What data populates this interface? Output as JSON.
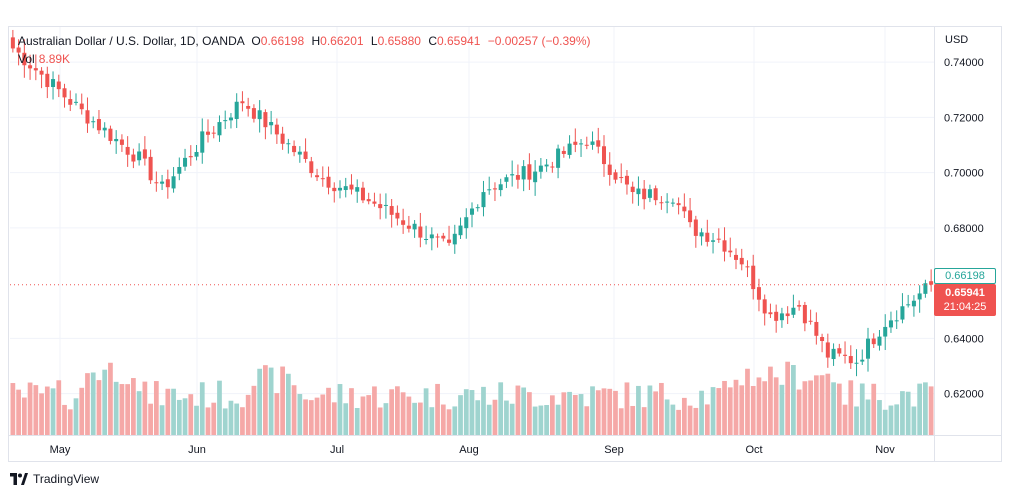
{
  "legend": {
    "title": "Australian Dollar / U.S. Dollar, 1D, OANDA",
    "open_label": "O",
    "open": "0.66198",
    "high_label": "H",
    "high": "0.66201",
    "low_label": "L",
    "low": "0.65880",
    "close_label": "C",
    "close": "0.65941",
    "change": "−0.00257 (−0.39%)",
    "vol_label": "Vol",
    "vol": "8.89K"
  },
  "currency": "USD",
  "price_tags": {
    "open": "0.66198",
    "close": "0.65941",
    "countdown": "21:04:25"
  },
  "brand": {
    "name": "TradingView",
    "logo_icon": "tradingview-logo-icon"
  },
  "colors": {
    "up": "#26a69a",
    "down": "#ef5350",
    "vol_up": "#9fd4cf",
    "vol_down": "#f5a8a7"
  },
  "chart_data": {
    "type": "candlestick",
    "title": "Australian Dollar / U.S. Dollar, 1D, OANDA",
    "ylabel": "USD",
    "ylim": [
      0.605,
      0.7527
    ],
    "y_ticks": [
      "0.74000",
      "0.72000",
      "0.70000",
      "0.68000",
      "0.64000",
      "0.62000"
    ],
    "x_ticks": [
      "May",
      "Jun",
      "Jul",
      "Aug",
      "Sep",
      "Oct",
      "Nov"
    ],
    "grid": true,
    "legend_position": "top-left",
    "last_price_line": 0.65941,
    "keyframes": {
      "index": [
        0,
        12,
        22,
        26,
        33,
        40,
        45,
        54,
        62,
        70,
        76,
        82,
        92,
        100,
        108,
        115,
        118,
        123,
        127,
        132,
        137,
        142,
        147,
        152,
        158,
        160
      ],
      "close": [
        0.745,
        0.722,
        0.705,
        0.694,
        0.712,
        0.726,
        0.716,
        0.698,
        0.69,
        0.68,
        0.672,
        0.694,
        0.702,
        0.712,
        0.692,
        0.692,
        0.68,
        0.676,
        0.668,
        0.648,
        0.652,
        0.634,
        0.632,
        0.646,
        0.656,
        0.659
      ]
    },
    "volume_range": [
      0.25,
      0.55
    ]
  }
}
